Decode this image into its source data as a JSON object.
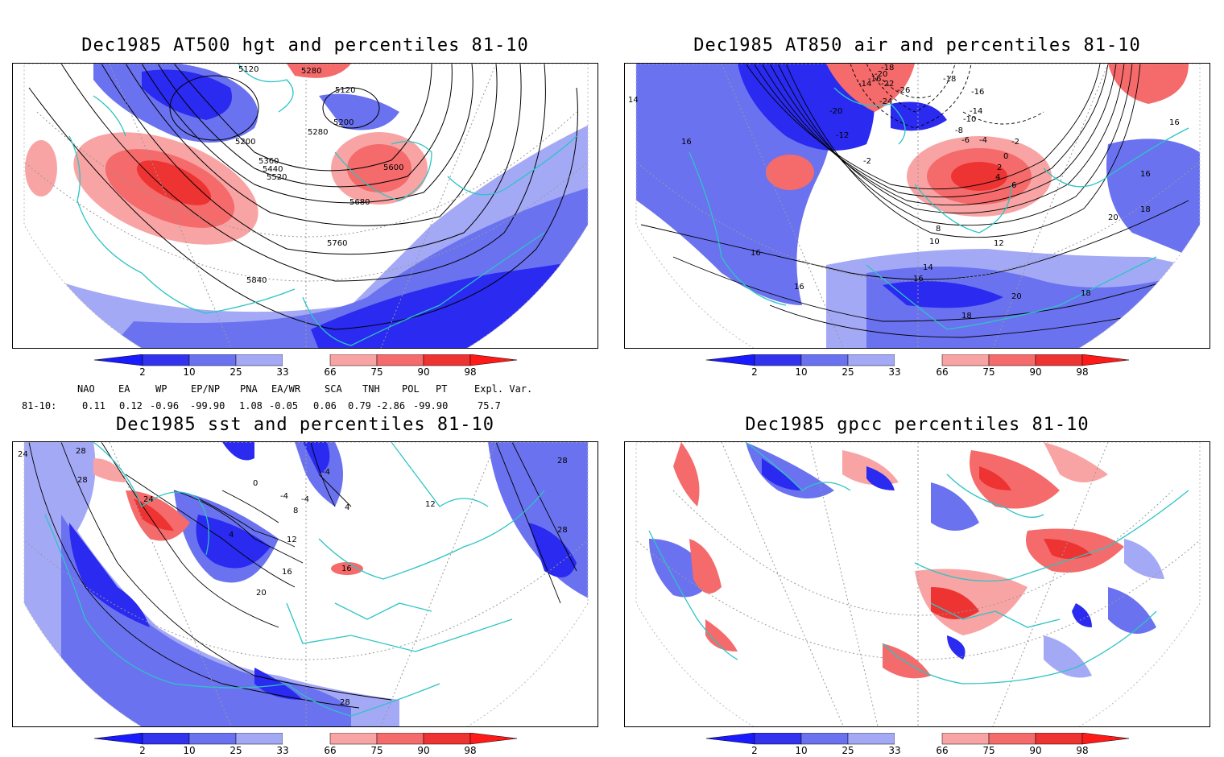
{
  "panels": [
    {
      "title": "Dec1985 AT500 hgt and percentiles 81-10",
      "contour_labels": [
        "5120",
        "5280",
        "5120",
        "5200",
        "5200",
        "5280",
        "5360",
        "5440",
        "5520",
        "5600",
        "5680",
        "5760",
        "5840"
      ]
    },
    {
      "title": "Dec1985 AT850 air and percentiles 81-10",
      "contour_labels": [
        "-18",
        "-20",
        "-16",
        "-14",
        "-22",
        "-24",
        "-26",
        "-18",
        "-16",
        "-14",
        "-12",
        "-20",
        "-10",
        "-8",
        "-6",
        "-4",
        "-2",
        "0",
        "2",
        "4",
        "6",
        "-2",
        "14",
        "16",
        "16",
        "18",
        "20",
        "16",
        "8",
        "10",
        "12",
        "14",
        "16",
        "18",
        "16",
        "20",
        "18",
        "16"
      ]
    },
    {
      "title": "Dec1985 sst and percentiles 81-10",
      "contour_labels": [
        "24",
        "28",
        "28",
        "24",
        "0",
        "-4",
        "-4",
        "4",
        "8",
        "12",
        "16",
        "20",
        "16",
        "4",
        "-4",
        "12",
        "28",
        "28",
        "28"
      ]
    },
    {
      "title": "Dec1985 gpcc percentiles 81-10",
      "contour_labels": []
    }
  ],
  "colorbar": {
    "labels": [
      "2",
      "10",
      "25",
      "33",
      "66",
      "75",
      "90",
      "98"
    ],
    "colors": [
      "#1a1aff",
      "#3333ee",
      "#6a72f0",
      "#a4a9f6",
      "#ffffff",
      "#f9a4a4",
      "#f56a6a",
      "#ee3333",
      "#ff1a1a"
    ]
  },
  "indices": {
    "header": [
      "NAO",
      "EA",
      "WP",
      "EP/NP",
      "PNA",
      "EA/WR",
      "SCA",
      "TNH",
      "POL",
      "PT",
      "Expl. Var."
    ],
    "row_label": "81-10:",
    "values": [
      "0.11",
      "0.12",
      "-0.96",
      "-99.90",
      "1.08",
      "-0.05",
      "0.06",
      "0.79",
      "-2.86",
      "-99.90",
      "75.7"
    ]
  },
  "colors": {
    "coast": "#2ec4c4",
    "blue_dark": "#2a2af0",
    "blue_mid": "#6a72f0",
    "blue_light": "#a4a9f6",
    "red_light": "#f9a4a4",
    "red_mid": "#f56a6a",
    "red_dark": "#ee3333"
  }
}
